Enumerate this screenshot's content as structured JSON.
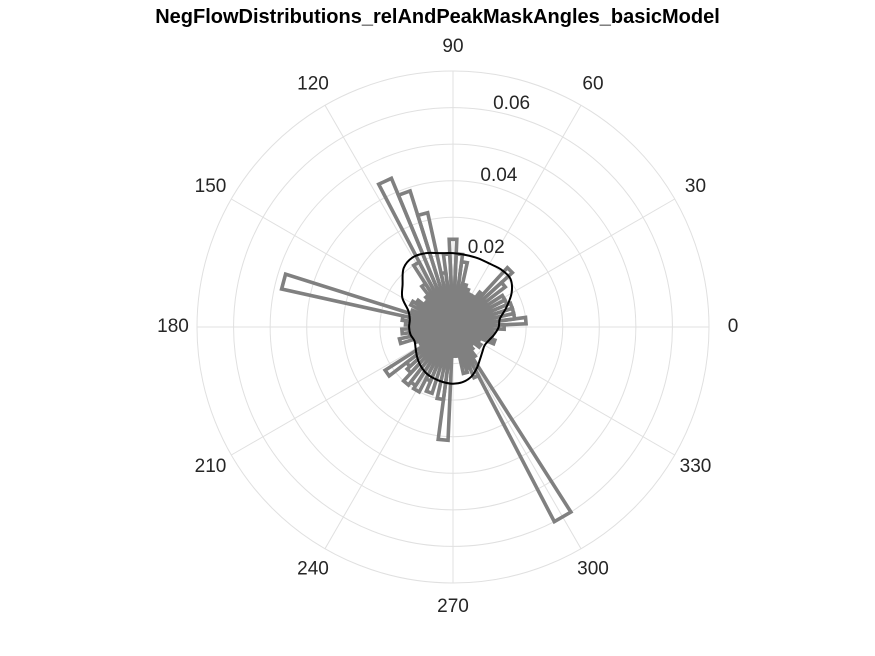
{
  "chart_data": {
    "type": "polar-histogram",
    "title": "NegFlowDistributions_relAndPeakMaskAngles_basicModel",
    "theta_ticks": [
      0,
      30,
      60,
      90,
      120,
      150,
      180,
      210,
      240,
      270,
      300,
      330
    ],
    "r_ticks": [
      0.02,
      0.04,
      0.06
    ],
    "r_tick_labels": [
      "0.02",
      "0.04",
      "0.06"
    ],
    "r_lim": [
      0,
      0.07
    ],
    "r_label_angle_deg": 80,
    "bin_width_deg": 5,
    "bins": [
      {
        "theta": 0,
        "r": 0.014
      },
      {
        "theta": 5,
        "r": 0.02
      },
      {
        "theta": 10,
        "r": 0.017
      },
      {
        "theta": 15,
        "r": 0.017
      },
      {
        "theta": 20,
        "r": 0.017
      },
      {
        "theta": 25,
        "r": 0.016
      },
      {
        "theta": 30,
        "r": 0.016
      },
      {
        "theta": 35,
        "r": 0.011
      },
      {
        "theta": 40,
        "r": 0.018
      },
      {
        "theta": 45,
        "r": 0.022
      },
      {
        "theta": 50,
        "r": 0.012
      },
      {
        "theta": 55,
        "r": 0.01
      },
      {
        "theta": 60,
        "r": 0.01
      },
      {
        "theta": 65,
        "r": 0.01
      },
      {
        "theta": 70,
        "r": 0.011
      },
      {
        "theta": 75,
        "r": 0.012
      },
      {
        "theta": 80,
        "r": 0.018
      },
      {
        "theta": 85,
        "r": 0.02
      },
      {
        "theta": 90,
        "r": 0.024
      },
      {
        "theta": 95,
        "r": 0.02
      },
      {
        "theta": 100,
        "r": 0.015
      },
      {
        "theta": 105,
        "r": 0.032
      },
      {
        "theta": 110,
        "r": 0.039
      },
      {
        "theta": 115,
        "r": 0.044
      },
      {
        "theta": 120,
        "r": 0.02
      },
      {
        "theta": 125,
        "r": 0.014
      },
      {
        "theta": 130,
        "r": 0.011
      },
      {
        "theta": 135,
        "r": 0.009
      },
      {
        "theta": 140,
        "r": 0.01
      },
      {
        "theta": 145,
        "r": 0.012
      },
      {
        "theta": 150,
        "r": 0.013
      },
      {
        "theta": 155,
        "r": 0.01
      },
      {
        "theta": 160,
        "r": 0.012
      },
      {
        "theta": 165,
        "r": 0.048
      },
      {
        "theta": 170,
        "r": 0.014
      },
      {
        "theta": 175,
        "r": 0.013
      },
      {
        "theta": 180,
        "r": 0.012
      },
      {
        "theta": 185,
        "r": 0.014
      },
      {
        "theta": 190,
        "r": 0.012
      },
      {
        "theta": 195,
        "r": 0.015
      },
      {
        "theta": 200,
        "r": 0.011
      },
      {
        "theta": 205,
        "r": 0.01
      },
      {
        "theta": 210,
        "r": 0.009
      },
      {
        "theta": 215,
        "r": 0.022
      },
      {
        "theta": 220,
        "r": 0.016
      },
      {
        "theta": 225,
        "r": 0.017
      },
      {
        "theta": 230,
        "r": 0.02
      },
      {
        "theta": 235,
        "r": 0.019
      },
      {
        "theta": 240,
        "r": 0.02
      },
      {
        "theta": 245,
        "r": 0.016
      },
      {
        "theta": 250,
        "r": 0.019
      },
      {
        "theta": 255,
        "r": 0.011
      },
      {
        "theta": 260,
        "r": 0.02
      },
      {
        "theta": 265,
        "r": 0.031
      },
      {
        "theta": 270,
        "r": 0.005
      },
      {
        "theta": 275,
        "r": 0.008
      },
      {
        "theta": 280,
        "r": 0.008
      },
      {
        "theta": 285,
        "r": 0.013
      },
      {
        "theta": 290,
        "r": 0.012
      },
      {
        "theta": 295,
        "r": 0.015
      },
      {
        "theta": 300,
        "r": 0.06
      },
      {
        "theta": 305,
        "r": 0.01
      },
      {
        "theta": 310,
        "r": 0.008
      },
      {
        "theta": 315,
        "r": 0.007
      },
      {
        "theta": 320,
        "r": 0.006
      },
      {
        "theta": 325,
        "r": 0.009
      },
      {
        "theta": 330,
        "r": 0.007
      },
      {
        "theta": 335,
        "r": 0.008
      },
      {
        "theta": 340,
        "r": 0.012
      },
      {
        "theta": 345,
        "r": 0.008
      },
      {
        "theta": 350,
        "r": 0.011
      },
      {
        "theta": 355,
        "r": 0.01
      }
    ],
    "distribution_curve": {
      "description": "smooth overlay distribution",
      "points": [
        {
          "theta": 0,
          "r": 0.0125
        },
        {
          "theta": 10,
          "r": 0.013
        },
        {
          "theta": 20,
          "r": 0.0155
        },
        {
          "theta": 30,
          "r": 0.0185
        },
        {
          "theta": 40,
          "r": 0.0205
        },
        {
          "theta": 50,
          "r": 0.0205
        },
        {
          "theta": 60,
          "r": 0.02
        },
        {
          "theta": 70,
          "r": 0.02
        },
        {
          "theta": 80,
          "r": 0.02
        },
        {
          "theta": 90,
          "r": 0.0202
        },
        {
          "theta": 100,
          "r": 0.0205
        },
        {
          "theta": 110,
          "r": 0.0215
        },
        {
          "theta": 120,
          "r": 0.022
        },
        {
          "theta": 130,
          "r": 0.021
        },
        {
          "theta": 140,
          "r": 0.018
        },
        {
          "theta": 150,
          "r": 0.016
        },
        {
          "theta": 160,
          "r": 0.013
        },
        {
          "theta": 170,
          "r": 0.012
        },
        {
          "theta": 180,
          "r": 0.012
        },
        {
          "theta": 190,
          "r": 0.0118
        },
        {
          "theta": 200,
          "r": 0.0112
        },
        {
          "theta": 210,
          "r": 0.0118
        },
        {
          "theta": 220,
          "r": 0.0128
        },
        {
          "theta": 230,
          "r": 0.0138
        },
        {
          "theta": 240,
          "r": 0.0146
        },
        {
          "theta": 250,
          "r": 0.015
        },
        {
          "theta": 260,
          "r": 0.0153
        },
        {
          "theta": 270,
          "r": 0.0155
        },
        {
          "theta": 280,
          "r": 0.0153
        },
        {
          "theta": 290,
          "r": 0.0145
        },
        {
          "theta": 300,
          "r": 0.013
        },
        {
          "theta": 310,
          "r": 0.0115
        },
        {
          "theta": 320,
          "r": 0.0105
        },
        {
          "theta": 330,
          "r": 0.01
        },
        {
          "theta": 340,
          "r": 0.0105
        },
        {
          "theta": 350,
          "r": 0.0115
        }
      ]
    },
    "colors": {
      "bars": "#808080",
      "curve": "#000000",
      "grid": "#e0e0e0",
      "text": "#262626"
    },
    "grid": true
  }
}
